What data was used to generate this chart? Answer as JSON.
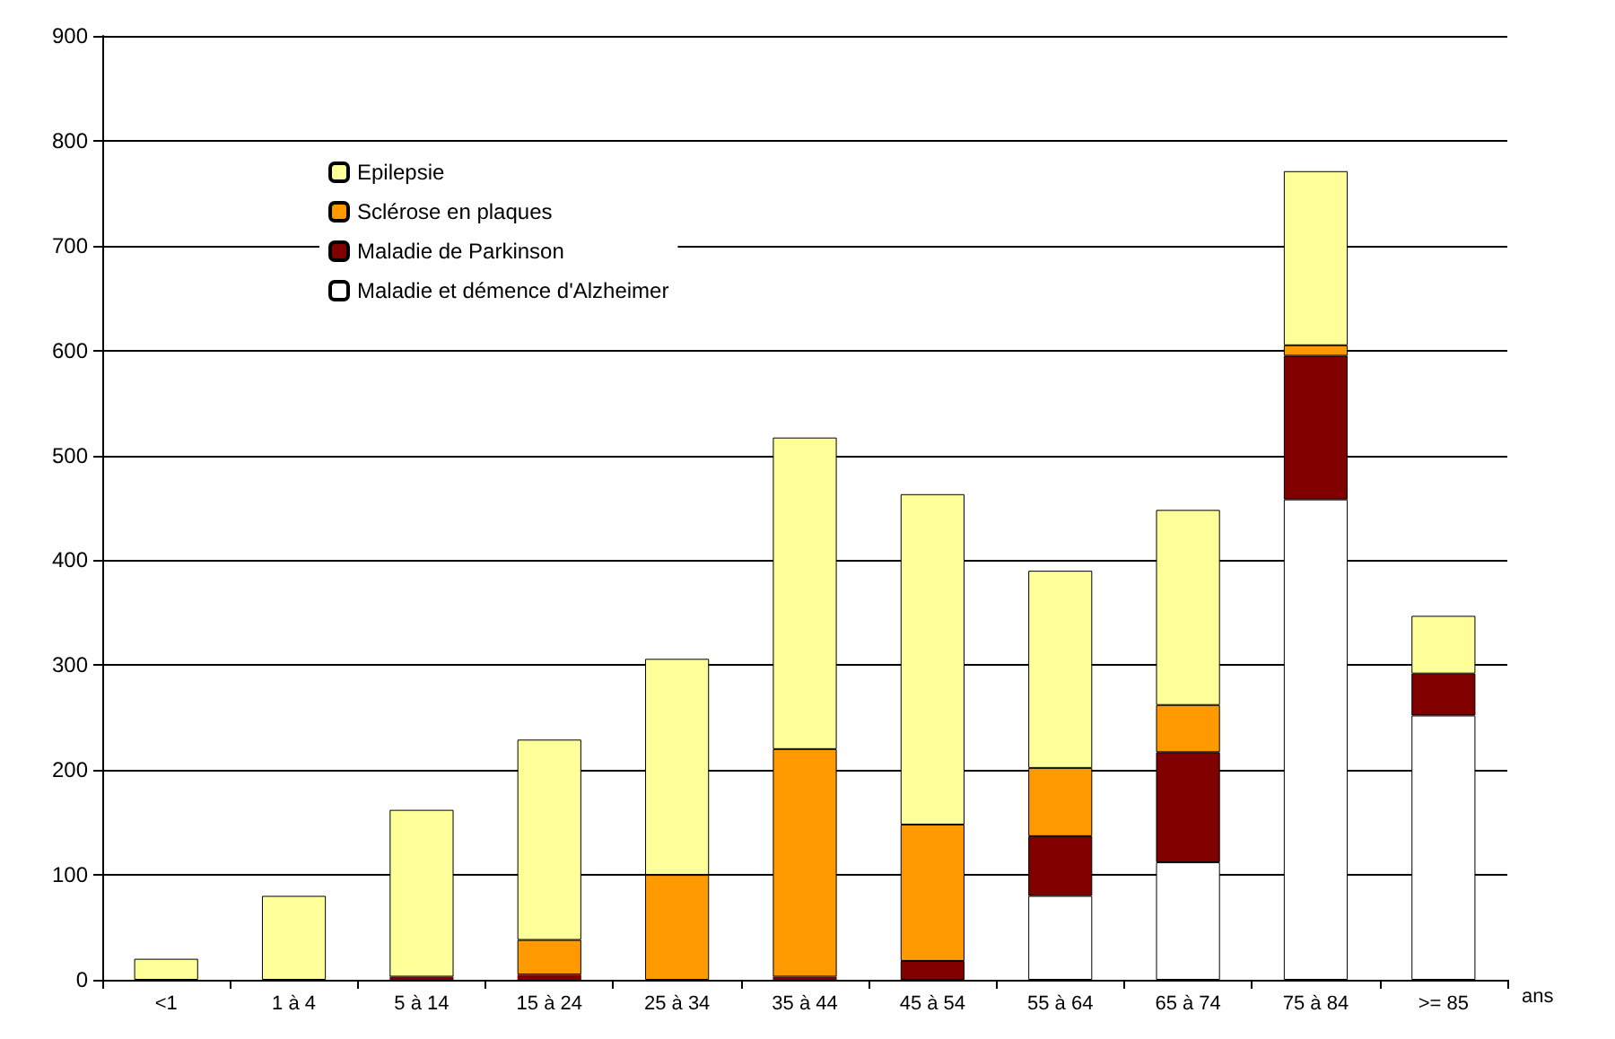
{
  "chart_data": {
    "type": "bar",
    "stacked": true,
    "xlabel": "ans",
    "categories": [
      "<1",
      "1 à 4",
      "5 à 14",
      "15 à 24",
      "25 à 34",
      "35 à 44",
      "45 à 54",
      "55 à 64",
      "65 à 74",
      "75 à 84",
      ">= 85"
    ],
    "series": [
      {
        "name": "Maladie et démence d'Alzheimer",
        "color": "#ffffff",
        "values": [
          0,
          0,
          0,
          0,
          0,
          0,
          0,
          80,
          112,
          458,
          252
        ]
      },
      {
        "name": "Maladie de Parkinson",
        "color": "#800000",
        "values": [
          0,
          0,
          3,
          5,
          0,
          3,
          18,
          57,
          105,
          137,
          40
        ]
      },
      {
        "name": "Sclérose en plaques",
        "color": "#ff9900",
        "values": [
          0,
          0,
          0,
          33,
          100,
          217,
          130,
          65,
          45,
          10,
          0
        ]
      },
      {
        "name": "Epilepsie",
        "color": "#ffff99",
        "values": [
          20,
          80,
          159,
          191,
          206,
          297,
          315,
          188,
          186,
          166,
          55
        ]
      }
    ],
    "ylim": [
      0,
      900
    ],
    "yticks": [
      0,
      100,
      200,
      300,
      400,
      500,
      600,
      700,
      800,
      900
    ],
    "grid": "y",
    "legend": "top left"
  }
}
